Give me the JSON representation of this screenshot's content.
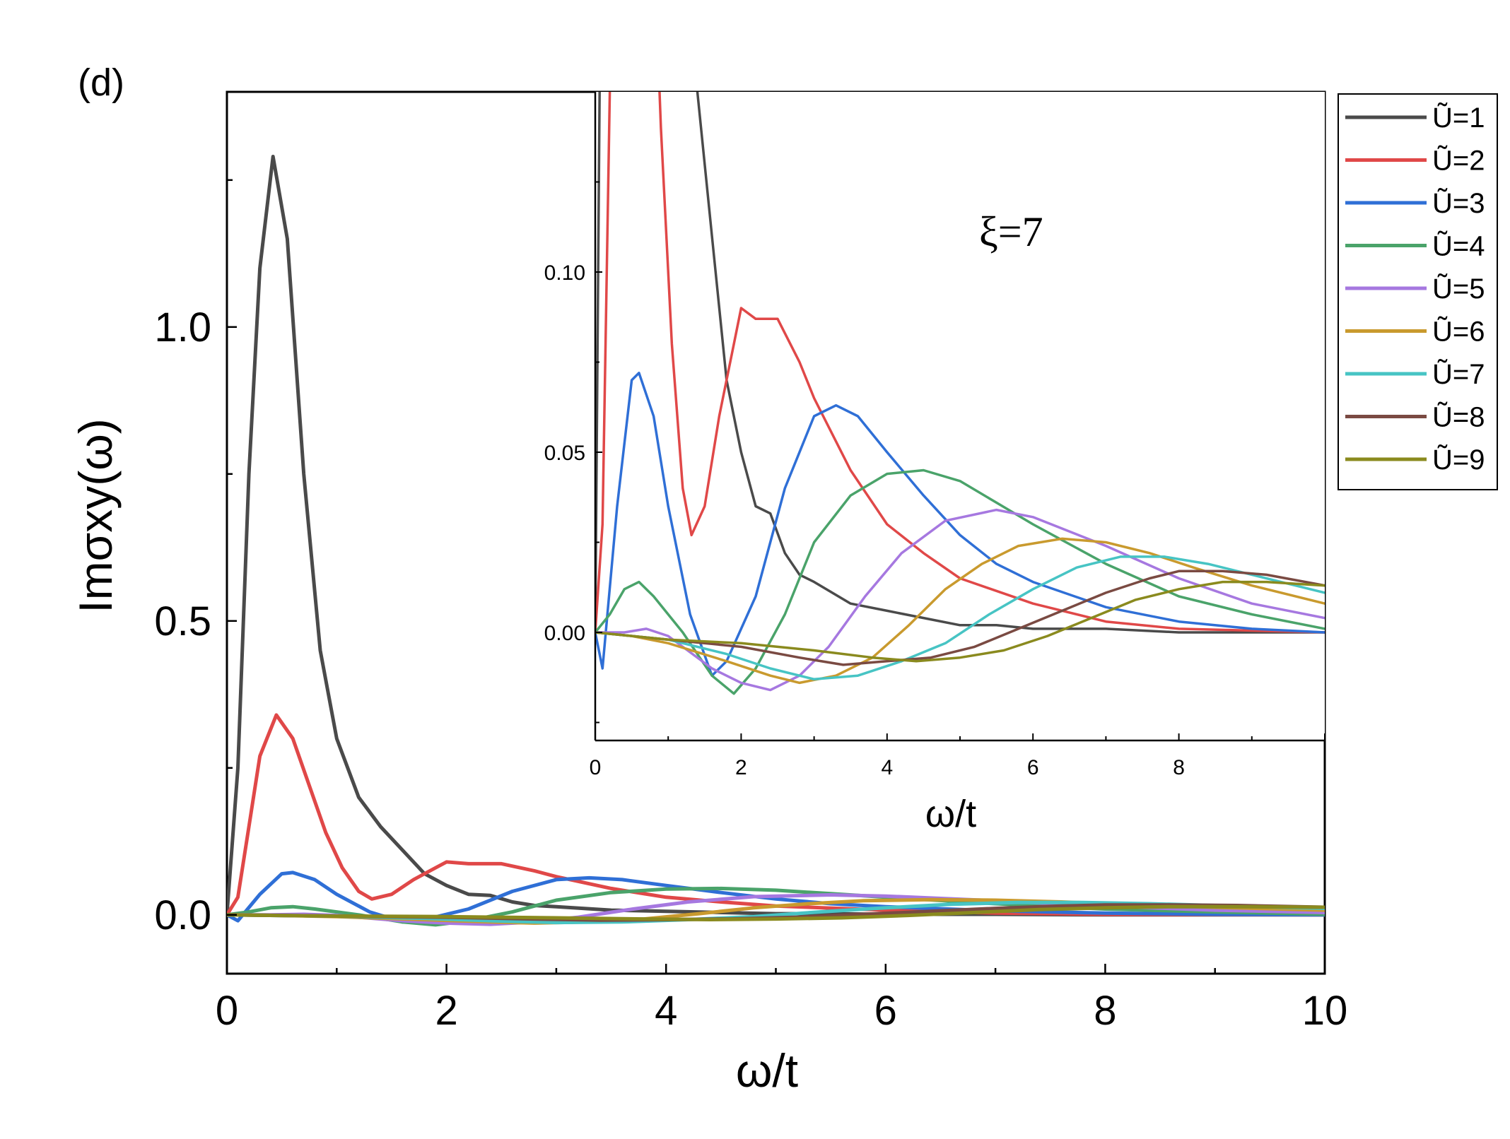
{
  "chart_data": {
    "type": "line",
    "panel_label": "(d)",
    "annotation": "ξ=7",
    "xlabel": "ω/t",
    "ylabel": "Imσxy(ω)",
    "main": {
      "xlim": [
        0,
        10
      ],
      "ylim": [
        -0.1,
        1.4
      ],
      "xticks": [
        "0",
        "2",
        "4",
        "6",
        "8",
        "10"
      ],
      "yticks": [
        "0.0",
        "0.5",
        "1.0"
      ]
    },
    "inset": {
      "xlim": [
        0,
        10
      ],
      "ylim": [
        -0.03,
        0.15
      ],
      "xticks": [
        "0",
        "2",
        "4",
        "6",
        "8"
      ],
      "yticks": [
        "0.00",
        "0.05",
        "0.10"
      ],
      "xlabel": "ω/t"
    },
    "series": [
      {
        "name": "Ũ=1",
        "color": "#4a4a4a",
        "points": [
          [
            0,
            0
          ],
          [
            0.1,
            0.25
          ],
          [
            0.2,
            0.75
          ],
          [
            0.3,
            1.1
          ],
          [
            0.42,
            1.29
          ],
          [
            0.55,
            1.15
          ],
          [
            0.7,
            0.75
          ],
          [
            0.85,
            0.45
          ],
          [
            1.0,
            0.3
          ],
          [
            1.2,
            0.2
          ],
          [
            1.4,
            0.15
          ],
          [
            1.6,
            0.11
          ],
          [
            1.8,
            0.07
          ],
          [
            2.0,
            0.05
          ],
          [
            2.2,
            0.035
          ],
          [
            2.4,
            0.033
          ],
          [
            2.6,
            0.022
          ],
          [
            2.8,
            0.016
          ],
          [
            3.0,
            0.014
          ],
          [
            3.5,
            0.008
          ],
          [
            4.0,
            0.006
          ],
          [
            4.5,
            0.004
          ],
          [
            5.0,
            0.002
          ],
          [
            5.5,
            0.002
          ],
          [
            6.0,
            0.001
          ],
          [
            7.0,
            0.001
          ],
          [
            8.0,
            0.0
          ],
          [
            10.0,
            0.0
          ]
        ]
      },
      {
        "name": "Ũ=2",
        "color": "#e04848",
        "points": [
          [
            0,
            0
          ],
          [
            0.1,
            0.03
          ],
          [
            0.2,
            0.15
          ],
          [
            0.3,
            0.27
          ],
          [
            0.45,
            0.34
          ],
          [
            0.6,
            0.3
          ],
          [
            0.75,
            0.22
          ],
          [
            0.9,
            0.14
          ],
          [
            1.05,
            0.08
          ],
          [
            1.2,
            0.04
          ],
          [
            1.32,
            0.027
          ],
          [
            1.5,
            0.035
          ],
          [
            1.7,
            0.06
          ],
          [
            1.9,
            0.08
          ],
          [
            2.0,
            0.09
          ],
          [
            2.2,
            0.087
          ],
          [
            2.5,
            0.087
          ],
          [
            2.8,
            0.075
          ],
          [
            3.0,
            0.065
          ],
          [
            3.5,
            0.045
          ],
          [
            4.0,
            0.03
          ],
          [
            4.5,
            0.022
          ],
          [
            5.0,
            0.015
          ],
          [
            6.0,
            0.008
          ],
          [
            7.0,
            0.003
          ],
          [
            8.0,
            0.001
          ],
          [
            10.0,
            0.0
          ]
        ]
      },
      {
        "name": "Ũ=3",
        "color": "#2f6fd6",
        "points": [
          [
            0,
            0
          ],
          [
            0.1,
            -0.01
          ],
          [
            0.3,
            0.035
          ],
          [
            0.5,
            0.07
          ],
          [
            0.6,
            0.072
          ],
          [
            0.8,
            0.06
          ],
          [
            1.0,
            0.035
          ],
          [
            1.3,
            0.005
          ],
          [
            1.6,
            -0.012
          ],
          [
            1.8,
            -0.008
          ],
          [
            2.2,
            0.01
          ],
          [
            2.6,
            0.04
          ],
          [
            3.0,
            0.06
          ],
          [
            3.3,
            0.063
          ],
          [
            3.6,
            0.06
          ],
          [
            4.0,
            0.05
          ],
          [
            4.5,
            0.038
          ],
          [
            5.0,
            0.027
          ],
          [
            5.5,
            0.019
          ],
          [
            6.0,
            0.014
          ],
          [
            7.0,
            0.007
          ],
          [
            8.0,
            0.003
          ],
          [
            9.0,
            0.001
          ],
          [
            10.0,
            0.0
          ]
        ]
      },
      {
        "name": "Ũ=4",
        "color": "#4aa36a",
        "points": [
          [
            0,
            0
          ],
          [
            0.2,
            0.005
          ],
          [
            0.4,
            0.012
          ],
          [
            0.6,
            0.014
          ],
          [
            0.8,
            0.01
          ],
          [
            1.2,
            0.0
          ],
          [
            1.6,
            -0.012
          ],
          [
            1.9,
            -0.017
          ],
          [
            2.2,
            -0.01
          ],
          [
            2.6,
            0.005
          ],
          [
            3.0,
            0.025
          ],
          [
            3.5,
            0.038
          ],
          [
            4.0,
            0.044
          ],
          [
            4.5,
            0.045
          ],
          [
            5.0,
            0.042
          ],
          [
            5.5,
            0.036
          ],
          [
            6.0,
            0.03
          ],
          [
            7.0,
            0.019
          ],
          [
            8.0,
            0.01
          ],
          [
            9.0,
            0.005
          ],
          [
            10.0,
            0.001
          ]
        ]
      },
      {
        "name": "Ũ=5",
        "color": "#a678e0",
        "points": [
          [
            0,
            0
          ],
          [
            0.4,
            0.0
          ],
          [
            0.7,
            0.001
          ],
          [
            1.0,
            -0.001
          ],
          [
            1.6,
            -0.01
          ],
          [
            2.0,
            -0.014
          ],
          [
            2.4,
            -0.016
          ],
          [
            2.8,
            -0.012
          ],
          [
            3.2,
            -0.004
          ],
          [
            3.7,
            0.01
          ],
          [
            4.2,
            0.022
          ],
          [
            4.8,
            0.031
          ],
          [
            5.5,
            0.034
          ],
          [
            6.0,
            0.032
          ],
          [
            7.0,
            0.024
          ],
          [
            8.0,
            0.015
          ],
          [
            9.0,
            0.008
          ],
          [
            10.0,
            0.004
          ]
        ]
      },
      {
        "name": "Ũ=6",
        "color": "#c99a2e",
        "points": [
          [
            0,
            0
          ],
          [
            0.5,
            -0.001
          ],
          [
            1.0,
            -0.003
          ],
          [
            1.8,
            -0.008
          ],
          [
            2.4,
            -0.012
          ],
          [
            2.8,
            -0.014
          ],
          [
            3.3,
            -0.012
          ],
          [
            3.8,
            -0.007
          ],
          [
            4.3,
            0.002
          ],
          [
            4.8,
            0.012
          ],
          [
            5.3,
            0.019
          ],
          [
            5.8,
            0.024
          ],
          [
            6.4,
            0.026
          ],
          [
            7.0,
            0.025
          ],
          [
            7.6,
            0.022
          ],
          [
            8.2,
            0.018
          ],
          [
            9.0,
            0.013
          ],
          [
            10.0,
            0.008
          ]
        ]
      },
      {
        "name": "Ũ=7",
        "color": "#47c4c4",
        "points": [
          [
            0,
            0
          ],
          [
            1.0,
            -0.002
          ],
          [
            1.8,
            -0.006
          ],
          [
            2.4,
            -0.01
          ],
          [
            3.0,
            -0.013
          ],
          [
            3.6,
            -0.012
          ],
          [
            4.2,
            -0.008
          ],
          [
            4.8,
            -0.003
          ],
          [
            5.4,
            0.005
          ],
          [
            6.0,
            0.012
          ],
          [
            6.6,
            0.018
          ],
          [
            7.2,
            0.021
          ],
          [
            7.8,
            0.021
          ],
          [
            8.4,
            0.019
          ],
          [
            9.0,
            0.016
          ],
          [
            10.0,
            0.011
          ]
        ]
      },
      {
        "name": "Ũ=8",
        "color": "#7a4a42",
        "points": [
          [
            0,
            0
          ],
          [
            1.0,
            -0.002
          ],
          [
            2.0,
            -0.004
          ],
          [
            2.8,
            -0.007
          ],
          [
            3.4,
            -0.009
          ],
          [
            4.0,
            -0.008
          ],
          [
            4.6,
            -0.007
          ],
          [
            5.2,
            -0.004
          ],
          [
            5.8,
            0.001
          ],
          [
            6.4,
            0.006
          ],
          [
            7.0,
            0.011
          ],
          [
            7.6,
            0.015
          ],
          [
            8.0,
            0.017
          ],
          [
            8.6,
            0.017
          ],
          [
            9.2,
            0.016
          ],
          [
            10.0,
            0.013
          ]
        ]
      },
      {
        "name": "Ũ=9",
        "color": "#8a8a1e",
        "points": [
          [
            0,
            0
          ],
          [
            1.0,
            -0.002
          ],
          [
            2.0,
            -0.003
          ],
          [
            3.0,
            -0.005
          ],
          [
            3.8,
            -0.007
          ],
          [
            4.4,
            -0.008
          ],
          [
            5.0,
            -0.007
          ],
          [
            5.6,
            -0.005
          ],
          [
            6.2,
            -0.001
          ],
          [
            6.8,
            0.004
          ],
          [
            7.4,
            0.009
          ],
          [
            8.0,
            0.012
          ],
          [
            8.6,
            0.014
          ],
          [
            9.2,
            0.014
          ],
          [
            10.0,
            0.013
          ]
        ]
      }
    ]
  }
}
